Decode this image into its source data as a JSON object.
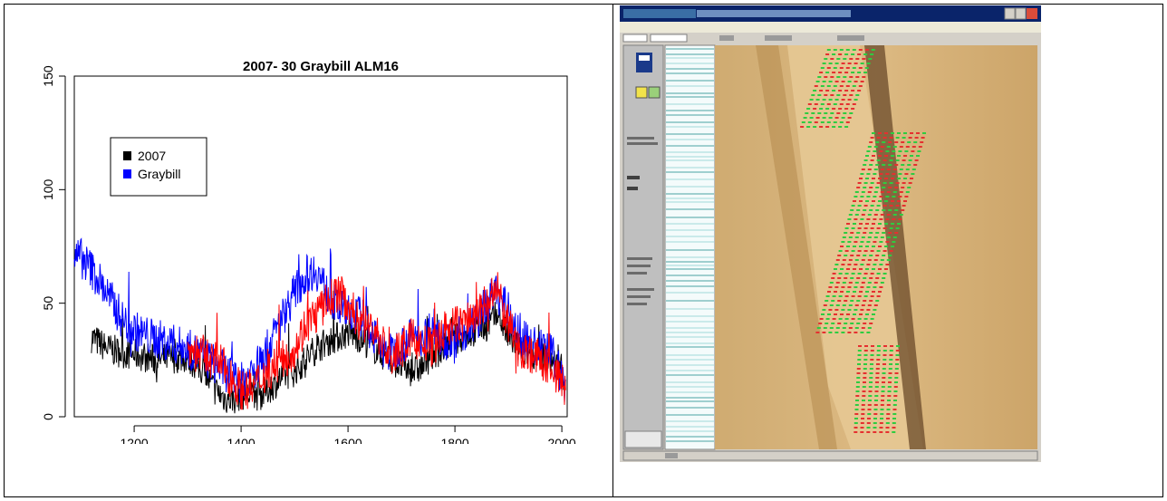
{
  "chart_data": {
    "type": "line",
    "title": "2007- 30    Graybill  ALM16",
    "xlabel": "",
    "ylabel": "",
    "xlim": [
      1088,
      2010
    ],
    "ylim": [
      0,
      150
    ],
    "x_ticks": [
      1200,
      1400,
      1600,
      1800,
      2000
    ],
    "y_ticks": [
      0,
      50,
      100,
      150
    ],
    "grid": false,
    "legend": {
      "position": "top-left",
      "entries": [
        "2007",
        "Graybill"
      ]
    },
    "series": [
      {
        "name": "2007",
        "color": "#000000",
        "x_start": 1120,
        "x_end": 2007,
        "x": [
          1120,
          1150,
          1180,
          1210,
          1240,
          1270,
          1300,
          1330,
          1350,
          1370,
          1390,
          1400,
          1420,
          1440,
          1460,
          1480,
          1500,
          1520,
          1540,
          1560,
          1580,
          1600,
          1620,
          1640,
          1660,
          1680,
          1700,
          1720,
          1740,
          1760,
          1780,
          1800,
          1820,
          1840,
          1860,
          1880,
          1900,
          1920,
          1940,
          1960,
          1980,
          2000,
          2007
        ],
        "values": [
          35,
          30,
          28,
          27,
          25,
          26,
          26,
          20,
          12,
          8,
          8,
          10,
          9,
          10,
          14,
          18,
          20,
          25,
          30,
          33,
          35,
          37,
          35,
          32,
          28,
          25,
          22,
          20,
          22,
          28,
          30,
          34,
          36,
          38,
          40,
          45,
          35,
          30,
          28,
          28,
          25,
          20,
          15
        ],
        "amplitude": 7
      },
      {
        "name": "Graybill",
        "color": "#0000ff",
        "x_start": 1088,
        "x_end": 2007,
        "x": [
          1088,
          1100,
          1120,
          1140,
          1160,
          1180,
          1200,
          1230,
          1260,
          1300,
          1340,
          1370,
          1400,
          1420,
          1440,
          1460,
          1480,
          1500,
          1520,
          1540,
          1560,
          1580,
          1600,
          1620,
          1640,
          1660,
          1680,
          1700,
          1720,
          1740,
          1760,
          1780,
          1800,
          1820,
          1840,
          1860,
          1880,
          1900,
          1920,
          1940,
          1960,
          1980,
          2000,
          2007
        ],
        "values": [
          70,
          70,
          65,
          58,
          50,
          42,
          38,
          35,
          33,
          30,
          25,
          20,
          15,
          20,
          25,
          35,
          45,
          55,
          62,
          65,
          55,
          48,
          45,
          45,
          40,
          30,
          28,
          32,
          35,
          35,
          40,
          35,
          32,
          38,
          42,
          50,
          55,
          45,
          35,
          32,
          30,
          28,
          18,
          12
        ],
        "amplitude": 9
      },
      {
        "name": "",
        "color": "#ff0000",
        "x_start": 1300,
        "x_end": 2007,
        "x": [
          1300,
          1320,
          1340,
          1360,
          1380,
          1400,
          1420,
          1440,
          1460,
          1480,
          1500,
          1520,
          1540,
          1560,
          1580,
          1600,
          1620,
          1640,
          1660,
          1680,
          1700,
          1720,
          1740,
          1760,
          1780,
          1800,
          1820,
          1840,
          1860,
          1880,
          1900,
          1920,
          1940,
          1960,
          1980,
          2000,
          2007
        ],
        "values": [
          30,
          28,
          26,
          24,
          18,
          12,
          12,
          18,
          22,
          25,
          30,
          40,
          45,
          50,
          55,
          50,
          42,
          40,
          35,
          25,
          30,
          35,
          32,
          30,
          38,
          40,
          42,
          45,
          50,
          55,
          40,
          30,
          28,
          25,
          22,
          15,
          12
        ],
        "amplitude": 9
      }
    ]
  },
  "screenshot": {
    "window_bg": "#d4d0c8",
    "title_bar_color": "#0a246a",
    "wood_color": "#d8b47c",
    "ring_marker_colors": [
      "#2ecc40",
      "#e53030"
    ],
    "icons": [
      "save-icon",
      "tool-icon",
      "minimize-icon",
      "maximize-icon",
      "close-icon"
    ]
  }
}
